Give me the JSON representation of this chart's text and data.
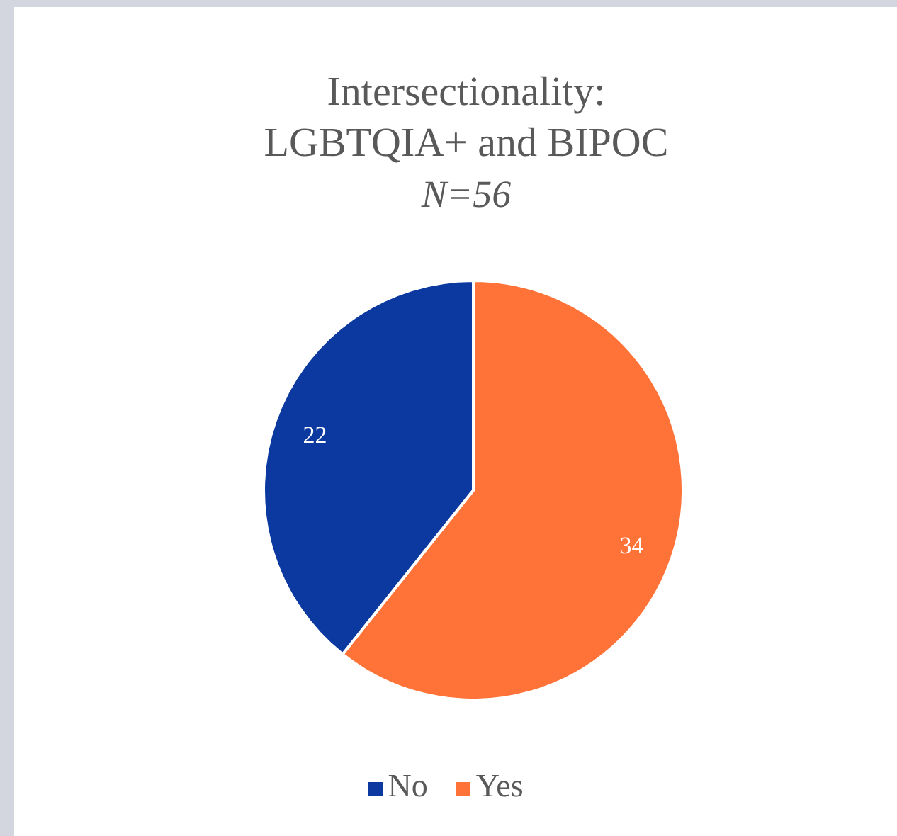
{
  "chart_data": {
    "type": "pie",
    "title": "Intersectionality:\nLGBTQIA+ and BIPOC",
    "subtitle": "N=56",
    "categories": [
      "Yes",
      "No"
    ],
    "values": [
      34,
      22
    ],
    "colors": [
      "#ff7338",
      "#0b39a0"
    ],
    "data_labels": true,
    "legend": "bottom"
  }
}
